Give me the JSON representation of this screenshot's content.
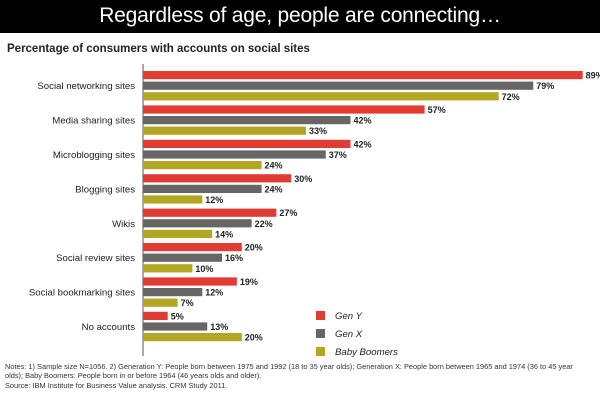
{
  "header": {
    "title": "Regardless of age, people are connecting…"
  },
  "chart_data": {
    "type": "bar",
    "orientation": "horizontal",
    "title": "Percentage of consumers with accounts on social sites",
    "categories": [
      "Social networking sites",
      "Media sharing sites",
      "Microblogging sites",
      "Blogging sites",
      "Wikis",
      "Social review sites",
      "Social bookmarking sites",
      "No accounts"
    ],
    "series": [
      {
        "name": "Gen Y",
        "color": "#e03c31",
        "values": [
          89,
          57,
          42,
          30,
          27,
          20,
          19,
          5
        ]
      },
      {
        "name": "Gen X",
        "color": "#666666",
        "values": [
          79,
          42,
          37,
          24,
          22,
          16,
          12,
          13
        ]
      },
      {
        "name": "Baby Boomers",
        "color": "#b3a622",
        "values": [
          72,
          33,
          24,
          12,
          14,
          10,
          7,
          20
        ]
      }
    ],
    "value_suffix": "%",
    "xlim": [
      0,
      100
    ],
    "grid": false,
    "legend_position": "bottom-right"
  },
  "footer": {
    "notes_line1": "Notes: 1) Sample size N=1056. 2) Generation Y: People born between 1975 and 1992 (18 to 35 year olds); Generation X: People born between 1965 and 1974 (36 to 45 year",
    "notes_line2": "olds); Baby Boomers: People born in or before 1964 (46 years olds and older).",
    "source": "Source: IBM Institute for Business Value analysis. CRM Study 2011."
  }
}
